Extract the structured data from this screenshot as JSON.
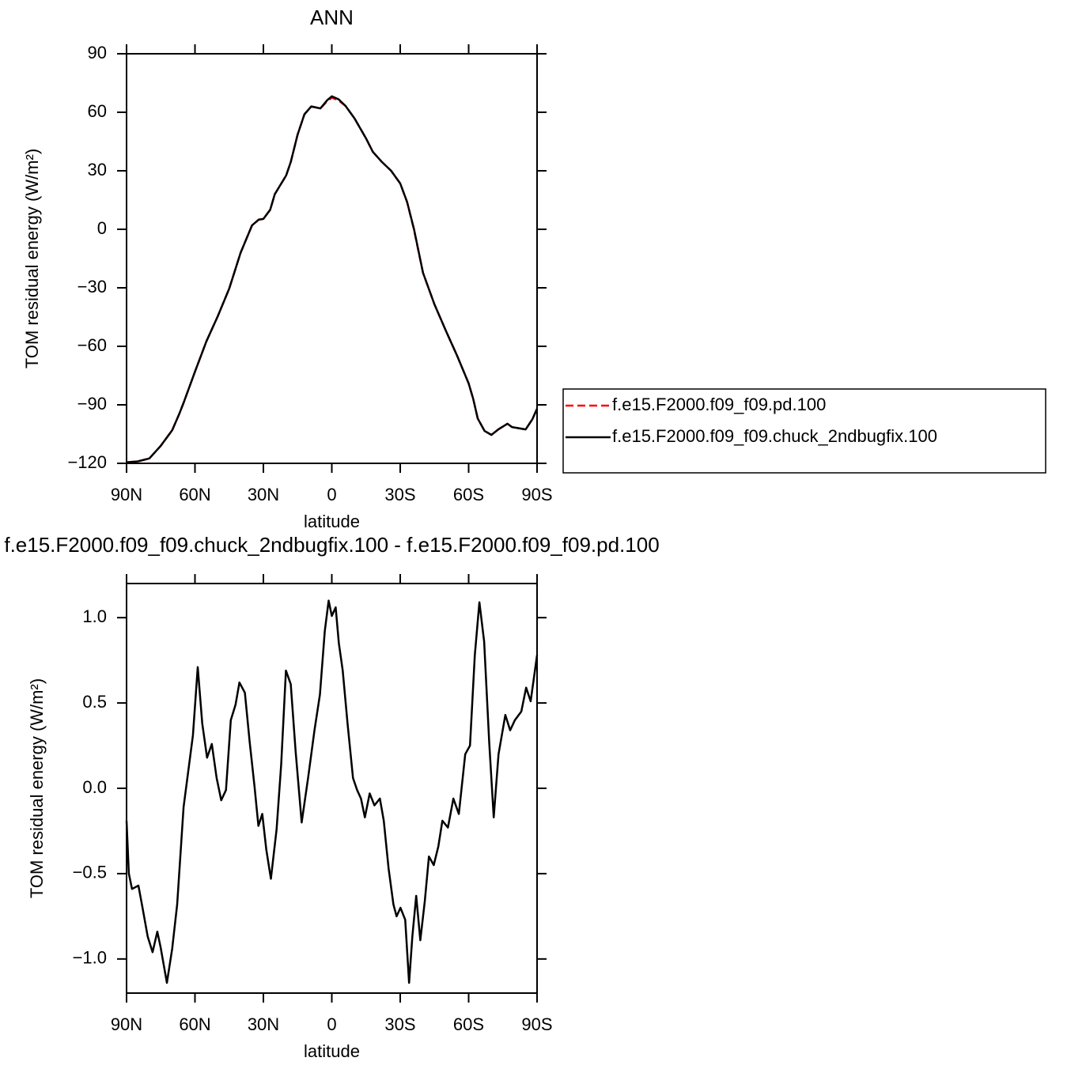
{
  "chart_data": [
    {
      "type": "line",
      "title": "ANN",
      "xlabel": "latitude",
      "ylabel": "TOM residual energy (W/m²)",
      "x": [
        90,
        85,
        80,
        75,
        70,
        67,
        65,
        60,
        55,
        50,
        45,
        40,
        35,
        32,
        30,
        27,
        25,
        20,
        18,
        15,
        12,
        9,
        5,
        2,
        0,
        -3,
        -6,
        -10,
        -15,
        -18,
        -22,
        -26,
        -30,
        -33,
        -36,
        -40,
        -45,
        -50,
        -55,
        -60,
        -62,
        -64,
        -67,
        -70,
        -73,
        -77,
        -79,
        -82,
        -85,
        -88,
        -90
      ],
      "series": [
        {
          "name": "f.e15.F2000.f09_f09.pd.100",
          "color": "#ff0000",
          "dashed": true,
          "values": [
            -119.5,
            -119,
            -117.5,
            -111,
            -103,
            -95,
            -89,
            -73,
            -57.5,
            -44.6,
            -30.4,
            -12,
            2,
            5,
            5.3,
            10,
            18,
            27.6,
            34.5,
            48.6,
            59,
            63,
            62,
            65.7,
            67.5,
            66,
            63.3,
            56.8,
            46.6,
            39.7,
            34.5,
            30,
            23.5,
            14,
            0,
            -22.3,
            -38.5,
            -52,
            -65,
            -79,
            -87,
            -97,
            -103.4,
            -105.4,
            -102.6,
            -99.7,
            -101.4,
            -102,
            -102.6,
            -97.3,
            -92
          ]
        },
        {
          "name": "f.e15.F2000.f09_f09.chuck_2ndbugfix.100",
          "color": "#000000",
          "dashed": false,
          "values": [
            -119.5,
            -119,
            -117.5,
            -111,
            -103,
            -95,
            -89,
            -73,
            -57.5,
            -44.6,
            -30.4,
            -12,
            2,
            5,
            5.3,
            10,
            18,
            27.6,
            34.5,
            48.6,
            59,
            63,
            62,
            66.2,
            68.2,
            66.6,
            63.3,
            56.8,
            46.6,
            39.7,
            34.5,
            30,
            23.5,
            14,
            0.3,
            -22.3,
            -38.5,
            -52,
            -65,
            -79,
            -87,
            -97,
            -103.4,
            -105.4,
            -102.6,
            -99.7,
            -101.4,
            -102,
            -102.6,
            -97.3,
            -92
          ]
        }
      ],
      "xlim": [
        90,
        -90
      ],
      "xticks": [
        {
          "value": 90,
          "label": "90N"
        },
        {
          "value": 60,
          "label": "60N"
        },
        {
          "value": 30,
          "label": "30N"
        },
        0,
        {
          "value": -30,
          "label": "30S"
        },
        {
          "value": -60,
          "label": "60S"
        },
        {
          "value": -90,
          "label": "90S"
        }
      ],
      "ylim": [
        -120,
        90
      ],
      "yticks": [
        90,
        60,
        30,
        0,
        {
          "value": -30,
          "label": "−30"
        },
        {
          "value": -60,
          "label": "−60"
        },
        {
          "value": -90,
          "label": "−90"
        },
        {
          "value": -120,
          "label": "−120"
        }
      ],
      "legend": "right"
    },
    {
      "type": "line",
      "title": "f.e15.F2000.f09_f09.chuck_2ndbugfix.100 - f.e15.F2000.f09_f09.pd.100",
      "xlabel": "latitude",
      "ylabel": "TOM residual energy (W/m²)",
      "x": [
        90,
        89,
        87.6,
        84.8,
        83,
        80.7,
        78.6,
        76.5,
        75.1,
        72.3,
        70,
        67.8,
        65,
        60.9,
        58.8,
        56.8,
        54.7,
        52.6,
        50.5,
        48.5,
        46.4,
        44.3,
        42.2,
        40.5,
        38.1,
        36,
        33.9,
        32.2,
        30.5,
        28.7,
        26.7,
        24.2,
        22.2,
        20.1,
        18,
        15.9,
        13.2,
        10.4,
        7.6,
        5.2,
        3.1,
        1.4,
        0,
        -1.7,
        -3.1,
        -4.8,
        -6.9,
        -9.3,
        -11.1,
        -12.8,
        -14.5,
        -16.6,
        -18.7,
        -21.1,
        -22.8,
        -24.9,
        -27,
        -28.4,
        -30.1,
        -32.2,
        -33.9,
        -35.3,
        -37,
        -38.8,
        -40.8,
        -42.6,
        -44.7,
        -46.7,
        -48.5,
        -50.9,
        -53.3,
        -55.7,
        -58.5,
        -60.6,
        -62.7,
        -64.7,
        -66.8,
        -69,
        -71,
        -73.1,
        -76.1,
        -78.2,
        -80.3,
        -83.1,
        -85.2,
        -87.2,
        -90
      ],
      "values": [
        -0.19,
        -0.5,
        -0.59,
        -0.57,
        -0.7,
        -0.87,
        -0.96,
        -0.84,
        -0.93,
        -1.14,
        -0.94,
        -0.68,
        -0.11,
        0.31,
        0.71,
        0.38,
        0.18,
        0.26,
        0.06,
        -0.07,
        -0.01,
        0.4,
        0.49,
        0.62,
        0.56,
        0.27,
        0.01,
        -0.22,
        -0.15,
        -0.36,
        -0.53,
        -0.24,
        0.14,
        0.69,
        0.61,
        0.22,
        -0.2,
        0.06,
        0.34,
        0.55,
        0.92,
        1.1,
        1.01,
        1.06,
        0.85,
        0.69,
        0.38,
        0.06,
        -0.01,
        -0.06,
        -0.17,
        -0.03,
        -0.1,
        -0.06,
        -0.19,
        -0.47,
        -0.68,
        -0.75,
        -0.7,
        -0.77,
        -1.14,
        -0.87,
        -0.63,
        -0.89,
        -0.66,
        -0.4,
        -0.45,
        -0.34,
        -0.19,
        -0.23,
        -0.06,
        -0.15,
        0.2,
        0.25,
        0.78,
        1.09,
        0.86,
        0.27,
        -0.17,
        0.2,
        0.43,
        0.34,
        0.4,
        0.45,
        0.59,
        0.51,
        0.78
      ],
      "color": "#000000",
      "xlim": [
        90,
        -90
      ],
      "xticks": [
        {
          "value": 90,
          "label": "90N"
        },
        {
          "value": 60,
          "label": "60N"
        },
        {
          "value": 30,
          "label": "30N"
        },
        0,
        {
          "value": -30,
          "label": "30S"
        },
        {
          "value": -60,
          "label": "60S"
        },
        {
          "value": -90,
          "label": "90S"
        }
      ],
      "ylim": [
        -1.2,
        1.2
      ],
      "yticks": [
        {
          "value": 1,
          "label": "1.0"
        },
        {
          "value": 0.5,
          "label": "0.5"
        },
        {
          "value": 0,
          "label": "0.0"
        },
        {
          "value": -0.5,
          "label": "−0.5"
        },
        {
          "value": -1,
          "label": "−1.0"
        }
      ]
    }
  ]
}
